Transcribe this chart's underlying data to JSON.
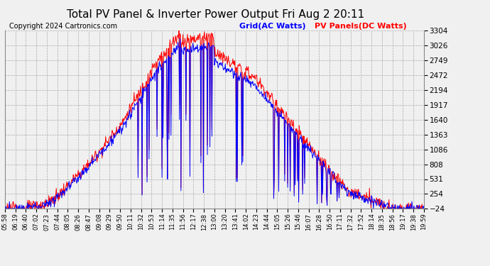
{
  "title": "Total PV Panel & Inverter Power Output Fri Aug 2 20:11",
  "copyright": "Copyright 2024 Cartronics.com",
  "legend_blue": "Grid(AC Watts)",
  "legend_red": "PV Panels(DC Watts)",
  "legend_blue_color": "#0000FF",
  "legend_red_color": "#FF0000",
  "y_ticks": [
    -23.5,
    253.8,
    531.0,
    808.3,
    1085.5,
    1362.8,
    1640.0,
    1917.3,
    2194.5,
    2471.8,
    2749.0,
    3026.3,
    3303.5
  ],
  "y_min": -23.5,
  "y_max": 3303.5,
  "background_color": "#f0f0f0",
  "grid_color": "#aaaaaa",
  "title_fontsize": 11,
  "copyright_fontsize": 7,
  "legend_fontsize": 8,
  "ytick_fontsize": 7.5,
  "xtick_fontsize": 6,
  "x_labels": [
    "05:58",
    "06:19",
    "06:40",
    "07:02",
    "07:23",
    "07:44",
    "08:05",
    "08:26",
    "08:47",
    "09:08",
    "09:29",
    "09:50",
    "10:11",
    "10:32",
    "10:53",
    "11:14",
    "11:35",
    "11:56",
    "12:17",
    "12:38",
    "13:00",
    "13:20",
    "13:41",
    "14:02",
    "14:23",
    "14:44",
    "15:05",
    "15:26",
    "15:46",
    "16:07",
    "16:28",
    "16:50",
    "17:11",
    "17:32",
    "17:52",
    "18:14",
    "18:35",
    "18:56",
    "19:17",
    "19:38",
    "19:59"
  ]
}
